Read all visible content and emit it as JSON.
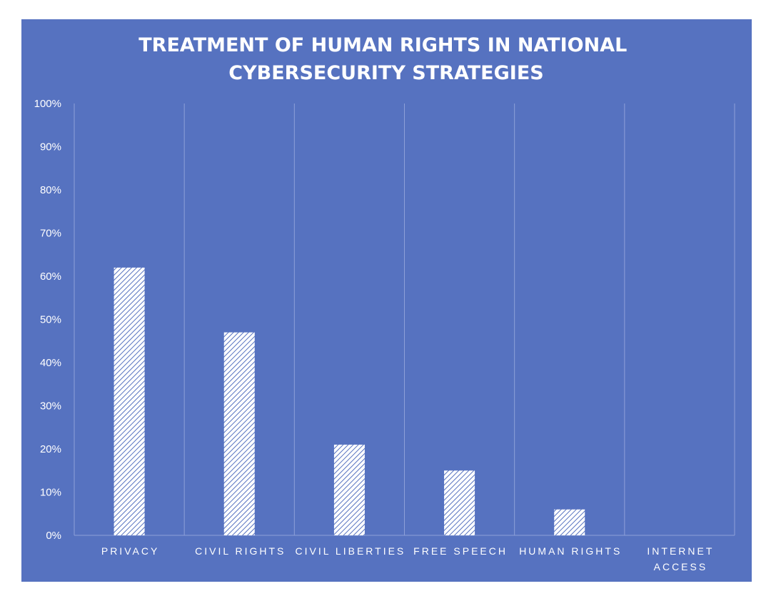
{
  "chart_data": {
    "type": "bar",
    "title_lines": [
      "TREATMENT OF HUMAN RIGHTS IN NATIONAL",
      "CYBERSECURITY STRATEGIES"
    ],
    "categories": [
      [
        "PRIVACY"
      ],
      [
        "CIVIL RIGHTS"
      ],
      [
        "CIVIL LIBERTIES"
      ],
      [
        "FREE SPEECH"
      ],
      [
        "HUMAN RIGHTS"
      ],
      [
        "INTERNET",
        "ACCESS"
      ]
    ],
    "values": [
      0.62,
      0.47,
      0.21,
      0.15,
      0.06,
      0.0
    ],
    "ylim": [
      0,
      1
    ],
    "y_ticks": [
      0,
      0.1,
      0.2,
      0.3,
      0.4,
      0.5,
      0.6,
      0.7,
      0.8,
      0.9,
      1.0
    ],
    "y_tick_labels": [
      "0%",
      "10%",
      "20%",
      "30%",
      "40%",
      "50%",
      "60%",
      "70%",
      "80%",
      "90%",
      "100%"
    ],
    "xlabel": "",
    "ylabel": "",
    "grid": "vertical category separators",
    "legend": "none",
    "bar_pattern": "diagonal hatch"
  },
  "colors": {
    "background": "#5672c0",
    "bar_hatch": "#ffffff",
    "gridline": "#8ea0d8",
    "text": "#ffffff"
  }
}
